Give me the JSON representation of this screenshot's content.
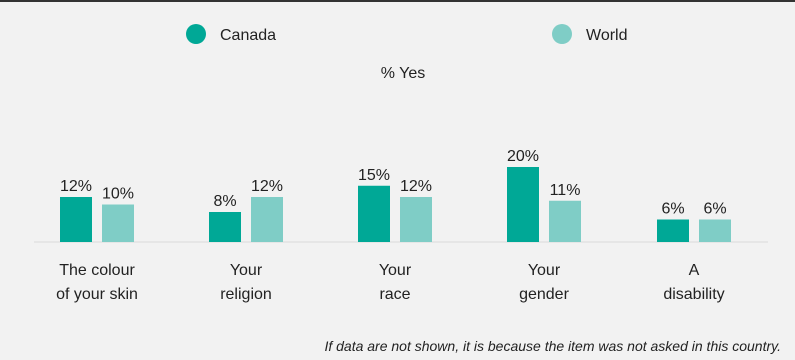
{
  "colors": {
    "canada": "#00a896",
    "world": "#7fcdc6"
  },
  "legend": [
    {
      "name": "Canada",
      "color": "#00a896"
    },
    {
      "name": "World",
      "color": "#7fcdc6"
    }
  ],
  "footnote": "If data are not shown, it is because the item was not asked in this country.",
  "chart_data": {
    "type": "bar",
    "ylabel": "% Yes",
    "categories": [
      [
        "The colour",
        "of your skin"
      ],
      [
        "Your",
        "religion"
      ],
      [
        "Your",
        "race"
      ],
      [
        "Your",
        "gender"
      ],
      [
        "A",
        "disability"
      ]
    ],
    "series": [
      {
        "name": "Canada",
        "values": [
          12,
          8,
          15,
          20,
          6
        ],
        "labels": [
          "12%",
          "8%",
          "15%",
          "20%",
          "6%"
        ]
      },
      {
        "name": "World",
        "values": [
          10,
          12,
          12,
          11,
          6
        ],
        "labels": [
          "10%",
          "12%",
          "12%",
          "11%",
          "6%"
        ]
      }
    ],
    "ylim": [
      0,
      20
    ],
    "grid": false,
    "legend_position": "top"
  }
}
